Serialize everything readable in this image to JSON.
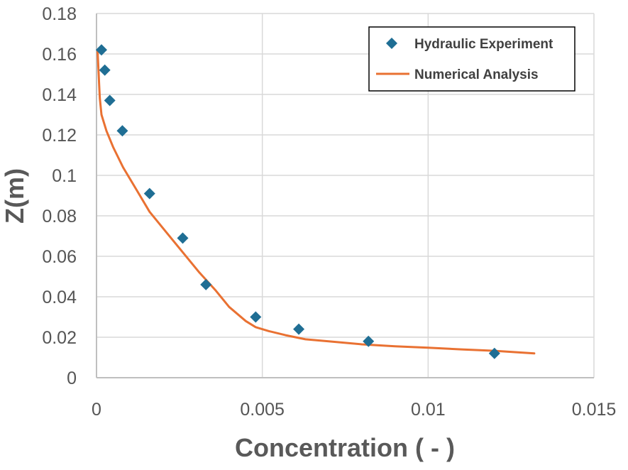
{
  "chart_data": {
    "type": "scatter",
    "title": "",
    "xlabel": "Concentration ( - )",
    "ylabel": "Z(m)",
    "xlim": [
      0,
      0.015
    ],
    "ylim": [
      0,
      0.18
    ],
    "x_ticks": [
      "0",
      "0.005",
      "0.01",
      "0.015"
    ],
    "y_ticks": [
      "0",
      "0.02",
      "0.04",
      "0.06",
      "0.08",
      "0.1",
      "0.12",
      "0.14",
      "0.16",
      "0.18"
    ],
    "grid": true,
    "legend_position": "top-right",
    "series": [
      {
        "name": "Hydraulic Experiment",
        "kind": "scatter",
        "marker": "diamond",
        "color": "#1F6E94",
        "x": [
          0.00015,
          0.00025,
          0.0004,
          0.00078,
          0.0016,
          0.0026,
          0.0033,
          0.0048,
          0.0061,
          0.0082,
          0.012
        ],
        "y": [
          0.162,
          0.152,
          0.137,
          0.122,
          0.091,
          0.069,
          0.046,
          0.03,
          0.024,
          0.018,
          0.012
        ]
      },
      {
        "name": "Numerical Analysis",
        "kind": "line",
        "color": "#E97132",
        "x": [
          3e-05,
          6e-05,
          8e-05,
          0.0001,
          0.00015,
          0.0003,
          0.0005,
          0.0008,
          0.0012,
          0.0016,
          0.0021,
          0.0026,
          0.0031,
          0.0036,
          0.004,
          0.0045,
          0.0048,
          0.0052,
          0.0057,
          0.0063,
          0.007,
          0.008,
          0.009,
          0.01,
          0.011,
          0.012,
          0.0132
        ],
        "y": [
          0.162,
          0.152,
          0.145,
          0.138,
          0.13,
          0.122,
          0.114,
          0.104,
          0.093,
          0.082,
          0.072,
          0.062,
          0.052,
          0.043,
          0.035,
          0.028,
          0.025,
          0.023,
          0.021,
          0.019,
          0.018,
          0.0165,
          0.0155,
          0.0148,
          0.014,
          0.0133,
          0.012
        ]
      }
    ]
  }
}
